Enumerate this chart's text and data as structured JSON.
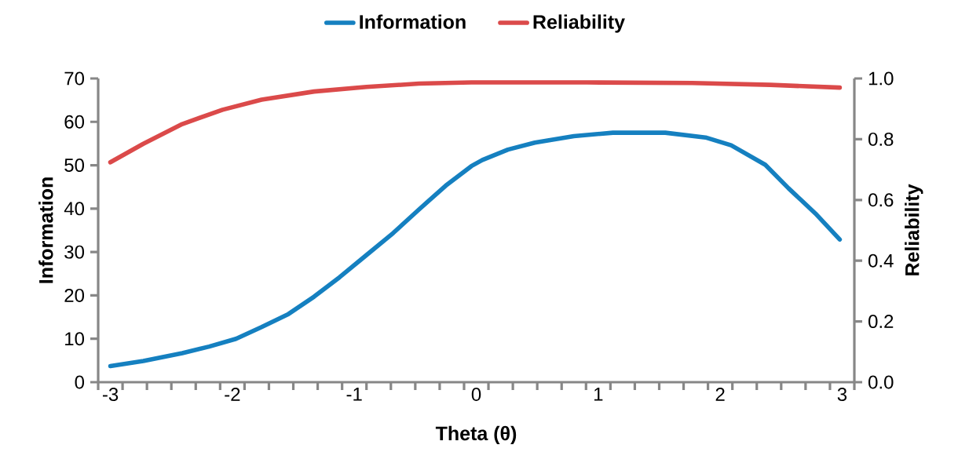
{
  "chart_data": {
    "type": "line",
    "xlabel": "Theta (θ)",
    "ylabel": "Information",
    "y2label": "Reliability",
    "legend": "top",
    "marker": "none",
    "line_style": "solid",
    "grid": false,
    "xlim": [
      -3.1,
      3.1
    ],
    "xticks": [
      -3,
      -2,
      -1,
      0,
      1,
      2,
      3,
      {
        "value": -3.1,
        "label": null
      },
      {
        "value": -2.9,
        "label": null
      },
      {
        "value": -2.7,
        "label": null
      },
      {
        "value": -2.5,
        "label": null
      },
      {
        "value": -2.3,
        "label": null
      },
      {
        "value": -2.1,
        "label": null
      },
      {
        "value": -1.9,
        "label": null
      },
      {
        "value": -1.7,
        "label": null
      },
      {
        "value": -1.5,
        "label": null
      },
      {
        "value": -1.3,
        "label": null
      },
      {
        "value": -1.1,
        "label": null
      },
      {
        "value": -0.9,
        "label": null
      },
      {
        "value": -0.7,
        "label": null
      },
      {
        "value": -0.5,
        "label": null
      },
      {
        "value": -0.3,
        "label": null
      },
      {
        "value": -0.1,
        "label": null
      },
      {
        "value": 0.1,
        "label": null
      },
      {
        "value": 0.3,
        "label": null
      },
      {
        "value": 0.5,
        "label": null
      },
      {
        "value": 0.7,
        "label": null
      },
      {
        "value": 0.9,
        "label": null
      },
      {
        "value": 1.1,
        "label": null
      },
      {
        "value": 1.3,
        "label": null
      },
      {
        "value": 1.5,
        "label": null
      },
      {
        "value": 1.7,
        "label": null
      },
      {
        "value": 1.9,
        "label": null
      },
      {
        "value": 2.1,
        "label": null
      },
      {
        "value": 2.3,
        "label": null
      },
      {
        "value": 2.5,
        "label": null
      },
      {
        "value": 2.7,
        "label": null
      },
      {
        "value": 2.9,
        "label": null
      },
      {
        "value": 3.1,
        "label": null
      }
    ],
    "ylim": [
      0,
      70
    ],
    "yticks": [
      0,
      10,
      20,
      30,
      40,
      50,
      60,
      70
    ],
    "y2lim": [
      0,
      1
    ],
    "y2ticks": [
      {
        "value": 0,
        "label": "0.0"
      },
      {
        "value": 0.2,
        "label": "0.2"
      },
      {
        "value": 0.4,
        "label": "0.4"
      },
      {
        "value": 0.6,
        "label": "0.6"
      },
      {
        "value": 0.8,
        "label": "0.8"
      },
      {
        "value": 1,
        "label": "1.0"
      }
    ],
    "series": [
      {
        "name": "Information",
        "color": "#1580c0",
        "x": [
          -3.0,
          -2.73,
          -2.41,
          -2.19,
          -1.97,
          -1.76,
          -1.54,
          -1.33,
          -1.12,
          -0.9,
          -0.68,
          -0.47,
          -0.25,
          -0.04,
          0.05,
          0.26,
          0.48,
          0.8,
          1.12,
          1.55,
          1.88,
          2.09,
          2.37,
          2.56,
          2.78,
          2.98
        ],
        "values": [
          3.7,
          4.9,
          6.7,
          8.2,
          10.0,
          12.7,
          15.7,
          19.7,
          24.2,
          29.3,
          34.4,
          39.8,
          45.3,
          49.8,
          51.2,
          53.6,
          55.2,
          56.7,
          57.5,
          57.5,
          56.4,
          54.6,
          50.1,
          44.7,
          38.9,
          32.9
        ]
      },
      {
        "name": "Reliability",
        "color": "#db4a4a",
        "axis": "y2",
        "x": [
          -3.0,
          -2.73,
          -2.41,
          -2.08,
          -1.76,
          -1.33,
          -0.9,
          -0.47,
          -0.04,
          0.91,
          1.77,
          2.41,
          2.98
        ],
        "values": [
          0.724,
          0.785,
          0.85,
          0.897,
          0.93,
          0.957,
          0.972,
          0.983,
          0.987,
          0.987,
          0.985,
          0.979,
          0.97
        ]
      }
    ]
  }
}
